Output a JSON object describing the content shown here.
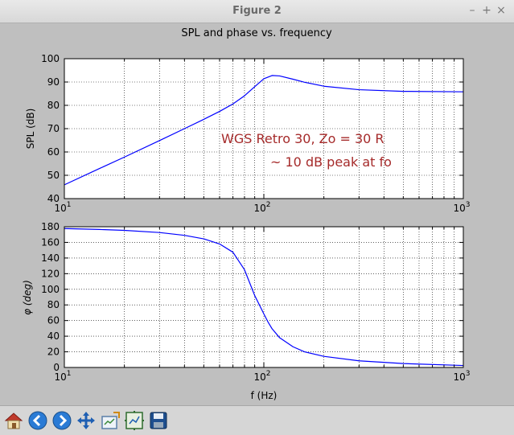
{
  "window": {
    "title": "Figure 2"
  },
  "chart_data": [
    {
      "type": "line",
      "title": "SPL and phase vs. frequency",
      "xlabel": "",
      "ylabel": "SPL (dB)",
      "xscale": "log",
      "xlim": [
        10,
        1000
      ],
      "ylim": [
        40,
        100
      ],
      "yticks": [
        "40",
        "50",
        "60",
        "70",
        "80",
        "90",
        "100"
      ],
      "xtick_base": "10",
      "xtick_exps": [
        "1",
        "2",
        "3"
      ],
      "grid": true,
      "annotations": [
        "WGS Retro 30, Zo = 30 R",
        "~ 10 dB peak at fo"
      ],
      "series": [
        {
          "color": "#0000ff",
          "x": [
            10,
            15,
            20,
            30,
            40,
            50,
            60,
            70,
            80,
            90,
            100,
            110,
            120,
            140,
            160,
            200,
            300,
            500,
            1000
          ],
          "y": [
            45.9,
            52.9,
            57.8,
            64.9,
            70.0,
            74.0,
            77.4,
            80.6,
            84.1,
            88.0,
            91.4,
            92.8,
            92.6,
            91.2,
            89.9,
            88.2,
            86.7,
            86.0,
            85.8
          ]
        }
      ]
    },
    {
      "type": "line",
      "xlabel": "f (Hz)",
      "ylabel": "φ (deg)",
      "xscale": "log",
      "xlim": [
        10,
        1000
      ],
      "ylim": [
        0,
        180
      ],
      "yticks": [
        "0",
        "20",
        "40",
        "60",
        "80",
        "100",
        "120",
        "140",
        "160",
        "180"
      ],
      "xtick_base": "10",
      "xtick_exps": [
        "1",
        "2",
        "3"
      ],
      "grid": true,
      "series": [
        {
          "color": "#0000ff",
          "x": [
            10,
            15,
            20,
            30,
            40,
            50,
            60,
            70,
            80,
            85,
            90,
            95,
            100,
            105,
            110,
            120,
            140,
            160,
            200,
            300,
            500,
            1000
          ],
          "y": [
            177.7,
            176.5,
            175.4,
            172.6,
            169.0,
            164.5,
            158.0,
            147.4,
            125.0,
            108.0,
            92.0,
            80.0,
            68.5,
            58.0,
            49.5,
            38.0,
            26.5,
            20.0,
            14.2,
            8.5,
            5.0,
            2.5
          ]
        }
      ]
    }
  ],
  "toolbar": [
    {
      "name": "home-button",
      "icon": "home-icon"
    },
    {
      "name": "back-button",
      "icon": "arrow-left-icon"
    },
    {
      "name": "forward-button",
      "icon": "arrow-right-icon"
    },
    {
      "name": "pan-button",
      "icon": "move-icon"
    },
    {
      "name": "zoom-button",
      "icon": "zoom-rect-icon"
    },
    {
      "name": "subplots-button",
      "icon": "subplots-icon"
    },
    {
      "name": "save-button",
      "icon": "save-icon"
    }
  ]
}
